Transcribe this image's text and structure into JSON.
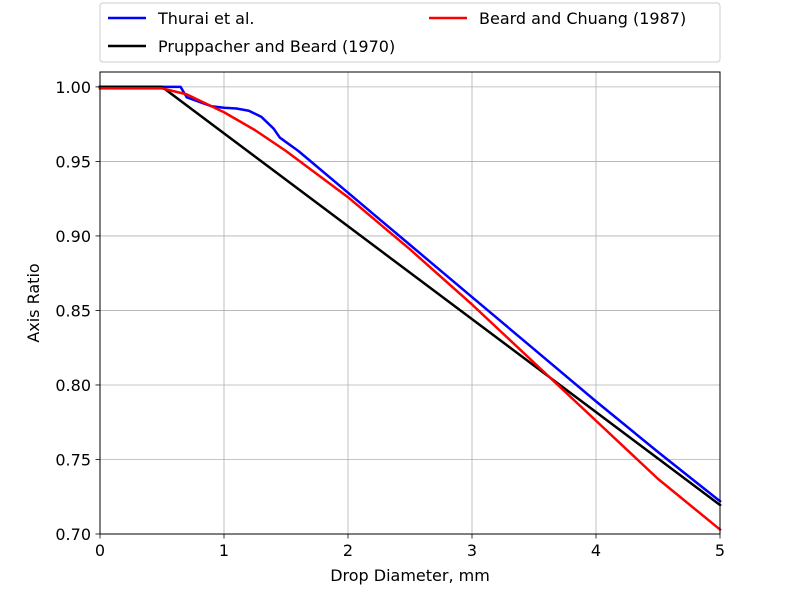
{
  "chart_data": {
    "type": "line",
    "title": "",
    "xlabel": "Drop Diameter, mm",
    "ylabel": "Axis Ratio",
    "xlim": [
      0,
      5
    ],
    "ylim": [
      0.7,
      1.01
    ],
    "x_ticks": [
      0,
      1,
      2,
      3,
      4,
      5
    ],
    "x_tick_labels": [
      "0",
      "1",
      "2",
      "3",
      "4",
      "5"
    ],
    "y_ticks": [
      0.7,
      0.75,
      0.8,
      0.85,
      0.9,
      0.95,
      1.0
    ],
    "y_tick_labels": [
      "0.70",
      "0.75",
      "0.80",
      "0.85",
      "0.90",
      "0.95",
      "1.00"
    ],
    "grid": true,
    "legend_position": "top, above plot, two columns",
    "series": [
      {
        "name": "Thurai et al.",
        "color": "#0000ff",
        "x": [
          0,
          0.5,
          0.65,
          0.7,
          0.8,
          0.9,
          1.0,
          1.1,
          1.2,
          1.3,
          1.4,
          1.45,
          1.5,
          1.6,
          2.0,
          2.5,
          3.0,
          3.5,
          4.0,
          4.5,
          5.0
        ],
        "y": [
          1.0,
          1.0,
          1.0,
          0.993,
          0.99,
          0.987,
          0.986,
          0.9855,
          0.984,
          0.98,
          0.972,
          0.966,
          0.963,
          0.957,
          0.929,
          0.894,
          0.859,
          0.824,
          0.789,
          0.755,
          0.722
        ]
      },
      {
        "name": "Pruppacher and Beard (1970)",
        "color": "#000000",
        "x": [
          0,
          0.5,
          5.0
        ],
        "y": [
          1.0,
          1.0,
          0.7195
        ]
      },
      {
        "name": "Beard and Chuang (1987)",
        "color": "#ff0000",
        "x": [
          0,
          0.5,
          0.7,
          0.8,
          1.0,
          1.25,
          1.5,
          2.0,
          2.5,
          3.0,
          3.5,
          4.0,
          4.5,
          5.0
        ],
        "y": [
          0.999,
          0.999,
          0.995,
          0.991,
          0.983,
          0.971,
          0.957,
          0.926,
          0.891,
          0.854,
          0.815,
          0.776,
          0.737,
          0.703
        ]
      }
    ]
  }
}
